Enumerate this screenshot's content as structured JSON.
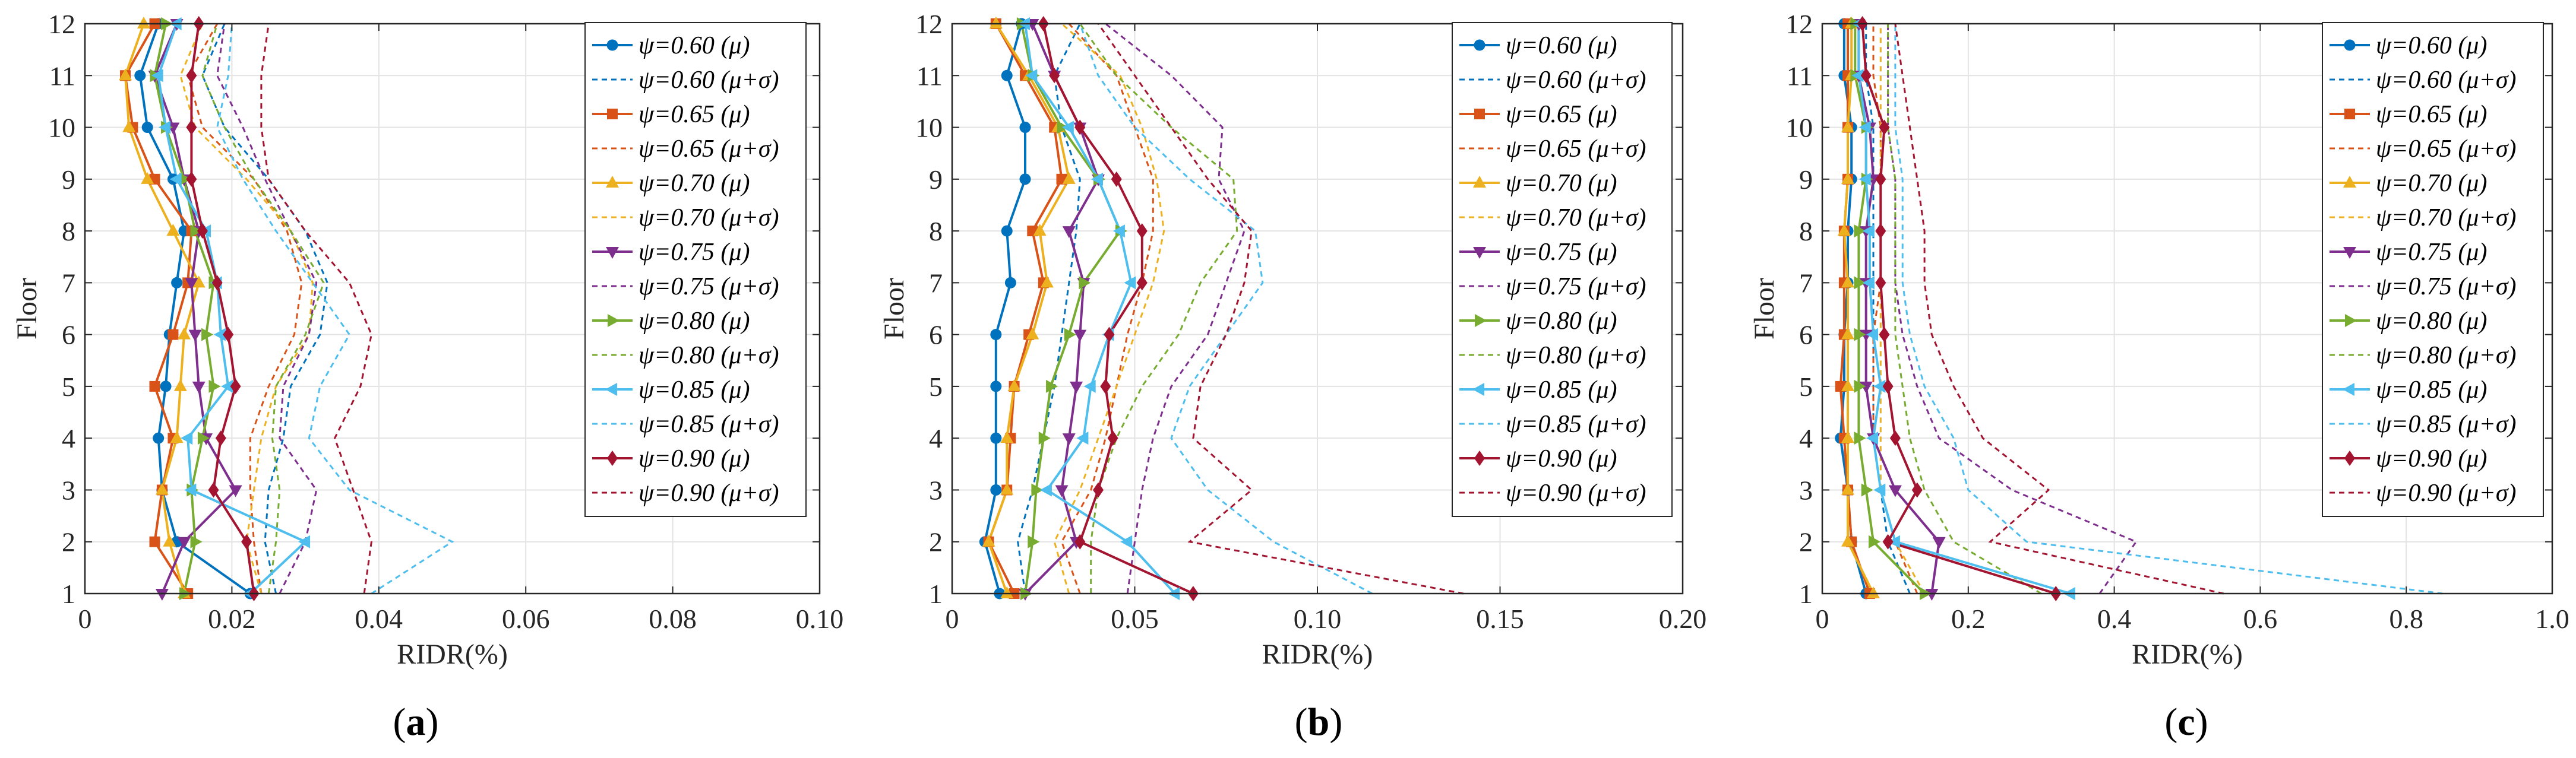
{
  "colors": {
    "0.60": "#0072BD",
    "0.65": "#D95319",
    "0.70": "#EDB120",
    "0.75": "#7E2F8E",
    "0.80": "#77AC30",
    "0.85": "#4DBEEE",
    "0.90": "#A2142F"
  },
  "chart_data": [
    {
      "type": "line",
      "panel_label": "a",
      "xlabel": "RIDR(%)",
      "ylabel": "Floor",
      "xlim": [
        0,
        0.1
      ],
      "xticks": [
        0,
        0.02,
        0.04,
        0.06,
        0.08,
        0.1
      ],
      "xtick_labels": [
        "0",
        "0.02",
        "0.04",
        "0.06",
        "0.08",
        "0.10"
      ],
      "ylim": [
        1,
        12
      ],
      "yticks": [
        1,
        2,
        3,
        4,
        5,
        6,
        7,
        8,
        9,
        10,
        11,
        12
      ],
      "ytick_labels": [
        "1",
        "2",
        "3",
        "4",
        "5",
        "6",
        "7",
        "8",
        "9",
        "10",
        "11",
        "12"
      ],
      "grid": true,
      "legend_position": "top-right",
      "series": [
        {
          "name": "ψ=0.60 (μ)",
          "psi": "0.60",
          "kind": "mean",
          "marker": "circle",
          "x": [
            0.0225,
            0.0125,
            0.0105,
            0.01,
            0.011,
            0.0115,
            0.0125,
            0.0135,
            0.012,
            0.0085,
            0.0075,
            0.01
          ]
        },
        {
          "name": "ψ=0.60 (μ+σ)",
          "psi": "0.60",
          "kind": "std",
          "x": [
            0.026,
            0.0245,
            0.025,
            0.027,
            0.028,
            0.032,
            0.033,
            0.03,
            0.025,
            0.019,
            0.016,
            0.019
          ]
        },
        {
          "name": "ψ=0.65 (μ)",
          "psi": "0.65",
          "kind": "mean",
          "marker": "square",
          "x": [
            0.014,
            0.0095,
            0.0105,
            0.012,
            0.0095,
            0.012,
            0.014,
            0.0145,
            0.0095,
            0.0065,
            0.0055,
            0.0095
          ]
        },
        {
          "name": "ψ=0.65 (μ+σ)",
          "psi": "0.65",
          "kind": "std",
          "x": [
            0.024,
            0.023,
            0.0225,
            0.0225,
            0.025,
            0.0285,
            0.0295,
            0.0275,
            0.023,
            0.016,
            0.014,
            0.018
          ]
        },
        {
          "name": "ψ=0.70 (μ)",
          "psi": "0.70",
          "kind": "mean",
          "marker": "triangle-up",
          "x": [
            0.0135,
            0.0115,
            0.0105,
            0.0125,
            0.013,
            0.0135,
            0.0155,
            0.012,
            0.0085,
            0.006,
            0.0055,
            0.008
          ]
        },
        {
          "name": "ψ=0.70 (μ+σ)",
          "psi": "0.70",
          "kind": "std",
          "x": [
            0.024,
            0.022,
            0.023,
            0.024,
            0.026,
            0.0305,
            0.031,
            0.028,
            0.022,
            0.015,
            0.013,
            0.016
          ]
        },
        {
          "name": "ψ=0.75 (μ)",
          "psi": "0.75",
          "kind": "mean",
          "marker": "triangle-down",
          "x": [
            0.0105,
            0.0135,
            0.0205,
            0.0165,
            0.0155,
            0.015,
            0.0145,
            0.0155,
            0.0135,
            0.012,
            0.0095,
            0.0125
          ]
        },
        {
          "name": "ψ=0.75 (μ+σ)",
          "psi": "0.75",
          "kind": "std",
          "x": [
            0.0265,
            0.03,
            0.0315,
            0.0265,
            0.027,
            0.0305,
            0.0315,
            0.028,
            0.0245,
            0.0215,
            0.018,
            0.019
          ]
        },
        {
          "name": "ψ=0.80 (μ)",
          "psi": "0.80",
          "kind": "mean",
          "marker": "triangle-right",
          "x": [
            0.0135,
            0.015,
            0.0145,
            0.016,
            0.0175,
            0.0165,
            0.0175,
            0.015,
            0.0135,
            0.011,
            0.0095,
            0.011
          ]
        },
        {
          "name": "ψ=0.80 (μ+σ)",
          "psi": "0.80",
          "kind": "std",
          "x": [
            0.025,
            0.026,
            0.0265,
            0.0255,
            0.026,
            0.03,
            0.0325,
            0.028,
            0.023,
            0.019,
            0.016,
            0.018
          ]
        },
        {
          "name": "ψ=0.85 (μ)",
          "psi": "0.85",
          "kind": "mean",
          "marker": "triangle-left",
          "x": [
            0.0225,
            0.03,
            0.0145,
            0.014,
            0.0195,
            0.0185,
            0.018,
            0.0165,
            0.0125,
            0.011,
            0.01,
            0.0125
          ]
        },
        {
          "name": "ψ=0.85 (μ+σ)",
          "psi": "0.85",
          "kind": "std",
          "x": [
            0.039,
            0.05,
            0.036,
            0.0305,
            0.032,
            0.036,
            0.031,
            0.026,
            0.0215,
            0.018,
            0.0195,
            0.02
          ]
        },
        {
          "name": "ψ=0.90 (μ)",
          "psi": "0.90",
          "kind": "mean",
          "marker": "diamond",
          "x": [
            0.023,
            0.022,
            0.0175,
            0.0185,
            0.0205,
            0.0195,
            0.018,
            0.016,
            0.0145,
            0.0145,
            0.0145,
            0.0155
          ]
        },
        {
          "name": "ψ=0.90 (μ+σ)",
          "psi": "0.90",
          "kind": "std",
          "x": [
            0.038,
            0.039,
            0.0365,
            0.034,
            0.0375,
            0.039,
            0.036,
            0.03,
            0.025,
            0.024,
            0.024,
            0.025
          ]
        }
      ]
    },
    {
      "type": "line",
      "panel_label": "b",
      "xlabel": "RIDR(%)",
      "ylabel": "Floor",
      "xlim": [
        0,
        0.2
      ],
      "xticks": [
        0,
        0.05,
        0.1,
        0.15,
        0.2
      ],
      "xtick_labels": [
        "0",
        "0.05",
        "0.10",
        "0.15",
        "0.20"
      ],
      "ylim": [
        1,
        12
      ],
      "yticks": [
        1,
        2,
        3,
        4,
        5,
        6,
        7,
        8,
        9,
        10,
        11,
        12
      ],
      "ytick_labels": [
        "1",
        "2",
        "3",
        "4",
        "5",
        "6",
        "7",
        "8",
        "9",
        "10",
        "11",
        "12"
      ],
      "grid": true,
      "legend_position": "top-right",
      "series": [
        {
          "name": "ψ=0.60 (μ)",
          "psi": "0.60",
          "kind": "mean",
          "marker": "circle",
          "x": [
            0.013,
            0.009,
            0.012,
            0.012,
            0.012,
            0.012,
            0.016,
            0.015,
            0.02,
            0.02,
            0.015,
            0.019
          ]
        },
        {
          "name": "ψ=0.60 (μ+σ)",
          "psi": "0.60",
          "kind": "std",
          "x": [
            0.02,
            0.018,
            0.022,
            0.025,
            0.028,
            0.03,
            0.032,
            0.034,
            0.035,
            0.03,
            0.028,
            0.035
          ]
        },
        {
          "name": "ψ=0.65 (μ)",
          "psi": "0.65",
          "kind": "mean",
          "marker": "square",
          "x": [
            0.017,
            0.01,
            0.015,
            0.016,
            0.017,
            0.021,
            0.025,
            0.022,
            0.03,
            0.028,
            0.02,
            0.012
          ]
        },
        {
          "name": "ψ=0.65 (μ+σ)",
          "psi": "0.65",
          "kind": "std",
          "x": [
            0.035,
            0.03,
            0.038,
            0.042,
            0.045,
            0.048,
            0.052,
            0.055,
            0.055,
            0.05,
            0.045,
            0.032
          ]
        },
        {
          "name": "ψ=0.70 (μ)",
          "psi": "0.70",
          "kind": "mean",
          "marker": "triangle-up",
          "x": [
            0.015,
            0.01,
            0.015,
            0.015,
            0.017,
            0.022,
            0.026,
            0.024,
            0.032,
            0.029,
            0.021,
            0.012
          ]
        },
        {
          "name": "ψ=0.70 (μ+σ)",
          "psi": "0.70",
          "kind": "std",
          "x": [
            0.032,
            0.028,
            0.035,
            0.04,
            0.045,
            0.05,
            0.055,
            0.058,
            0.056,
            0.052,
            0.046,
            0.03
          ]
        },
        {
          "name": "ψ=0.75 (μ)",
          "psi": "0.75",
          "kind": "mean",
          "marker": "triangle-down",
          "x": [
            0.02,
            0.034,
            0.03,
            0.032,
            0.034,
            0.035,
            0.036,
            0.032,
            0.04,
            0.035,
            0.028,
            0.022
          ]
        },
        {
          "name": "ψ=0.75 (μ+σ)",
          "psi": "0.75",
          "kind": "std",
          "x": [
            0.048,
            0.05,
            0.052,
            0.055,
            0.06,
            0.07,
            0.075,
            0.08,
            0.073,
            0.074,
            0.06,
            0.042
          ]
        },
        {
          "name": "ψ=0.80 (μ)",
          "psi": "0.80",
          "kind": "mean",
          "marker": "triangle-right",
          "x": [
            0.02,
            0.022,
            0.023,
            0.025,
            0.027,
            0.032,
            0.036,
            0.046,
            0.04,
            0.03,
            0.022,
            0.019
          ]
        },
        {
          "name": "ψ=0.80 (μ+σ)",
          "psi": "0.80",
          "kind": "std",
          "x": [
            0.038,
            0.038,
            0.04,
            0.045,
            0.052,
            0.062,
            0.068,
            0.078,
            0.077,
            0.06,
            0.045,
            0.035
          ]
        },
        {
          "name": "ψ=0.85 (μ)",
          "psi": "0.85",
          "kind": "mean",
          "marker": "triangle-left",
          "x": [
            0.061,
            0.048,
            0.026,
            0.036,
            0.038,
            0.043,
            0.049,
            0.046,
            0.04,
            0.032,
            0.022,
            0.02
          ]
        },
        {
          "name": "ψ=0.85 (μ+σ)",
          "psi": "0.85",
          "kind": "std",
          "x": [
            0.115,
            0.088,
            0.07,
            0.06,
            0.065,
            0.075,
            0.085,
            0.083,
            0.065,
            0.05,
            0.04,
            0.035
          ]
        },
        {
          "name": "ψ=0.90 (μ)",
          "psi": "0.90",
          "kind": "mean",
          "marker": "diamond",
          "x": [
            0.066,
            0.035,
            0.04,
            0.044,
            0.042,
            0.043,
            0.052,
            0.052,
            0.045,
            0.035,
            0.028,
            0.025
          ]
        },
        {
          "name": "ψ=0.90 (μ+σ)",
          "psi": "0.90",
          "kind": "std",
          "x": [
            0.14,
            0.065,
            0.082,
            0.066,
            0.068,
            0.075,
            0.08,
            0.082,
            0.07,
            0.06,
            0.05,
            0.04
          ]
        }
      ]
    },
    {
      "type": "line",
      "panel_label": "c",
      "xlabel": "RIDR(%)",
      "ylabel": "Floor",
      "xlim": [
        0,
        1.0
      ],
      "xticks": [
        0,
        0.2,
        0.4,
        0.6,
        0.8,
        1.0
      ],
      "xtick_labels": [
        "0",
        "0.2",
        "0.4",
        "0.6",
        "0.8",
        "1.0"
      ],
      "ylim": [
        1,
        12
      ],
      "yticks": [
        1,
        2,
        3,
        4,
        5,
        6,
        7,
        8,
        9,
        10,
        11,
        12
      ],
      "ytick_labels": [
        "1",
        "2",
        "3",
        "4",
        "5",
        "6",
        "7",
        "8",
        "9",
        "10",
        "11",
        "12"
      ],
      "grid": true,
      "legend_position": "top-right",
      "series": [
        {
          "name": "ψ=0.60 (μ)",
          "psi": "0.60",
          "kind": "mean",
          "marker": "circle",
          "x": [
            0.06,
            0.04,
            0.035,
            0.025,
            0.03,
            0.03,
            0.035,
            0.035,
            0.04,
            0.04,
            0.03,
            0.03
          ]
        },
        {
          "name": "ψ=0.60 (μ+σ)",
          "psi": "0.60",
          "kind": "std",
          "x": [
            0.12,
            0.09,
            0.08,
            0.07,
            0.07,
            0.07,
            0.07,
            0.07,
            0.07,
            0.07,
            0.06,
            0.06
          ]
        },
        {
          "name": "ψ=0.65 (μ)",
          "psi": "0.65",
          "kind": "mean",
          "marker": "square",
          "x": [
            0.065,
            0.04,
            0.035,
            0.03,
            0.025,
            0.03,
            0.03,
            0.03,
            0.035,
            0.035,
            0.035,
            0.035
          ]
        },
        {
          "name": "ψ=0.65 (μ+σ)",
          "psi": "0.65",
          "kind": "std",
          "x": [
            0.13,
            0.1,
            0.08,
            0.07,
            0.07,
            0.07,
            0.08,
            0.08,
            0.08,
            0.08,
            0.07,
            0.07
          ]
        },
        {
          "name": "ψ=0.70 (μ)",
          "psi": "0.70",
          "kind": "mean",
          "marker": "triangle-up",
          "x": [
            0.07,
            0.035,
            0.035,
            0.035,
            0.035,
            0.035,
            0.035,
            0.03,
            0.035,
            0.035,
            0.04,
            0.04
          ]
        },
        {
          "name": "ψ=0.70 (μ+σ)",
          "psi": "0.70",
          "kind": "std",
          "x": [
            0.14,
            0.1,
            0.08,
            0.08,
            0.08,
            0.08,
            0.08,
            0.08,
            0.08,
            0.08,
            0.08,
            0.08
          ]
        },
        {
          "name": "ψ=0.75 (μ)",
          "psi": "0.75",
          "kind": "mean",
          "marker": "triangle-down",
          "x": [
            0.15,
            0.16,
            0.1,
            0.07,
            0.06,
            0.06,
            0.06,
            0.06,
            0.07,
            0.065,
            0.05,
            0.05
          ]
        },
        {
          "name": "ψ=0.75 (μ+σ)",
          "psi": "0.75",
          "kind": "std",
          "x": [
            0.38,
            0.43,
            0.26,
            0.16,
            0.13,
            0.11,
            0.1,
            0.1,
            0.1,
            0.09,
            0.09,
            0.09
          ]
        },
        {
          "name": "ψ=0.80 (μ)",
          "psi": "0.80",
          "kind": "mean",
          "marker": "triangle-right",
          "x": [
            0.14,
            0.07,
            0.06,
            0.05,
            0.05,
            0.05,
            0.05,
            0.05,
            0.06,
            0.06,
            0.045,
            0.045
          ]
        },
        {
          "name": "ψ=0.80 (μ+σ)",
          "psi": "0.80",
          "kind": "std",
          "x": [
            0.3,
            0.18,
            0.14,
            0.12,
            0.11,
            0.1,
            0.1,
            0.1,
            0.1,
            0.09,
            0.09,
            0.09
          ]
        },
        {
          "name": "ψ=0.85 (μ)",
          "psi": "0.85",
          "kind": "mean",
          "marker": "triangle-left",
          "x": [
            0.34,
            0.1,
            0.08,
            0.07,
            0.08,
            0.07,
            0.065,
            0.065,
            0.06,
            0.06,
            0.05,
            0.05
          ]
        },
        {
          "name": "ψ=0.85 (μ+σ)",
          "psi": "0.85",
          "kind": "std",
          "x": [
            0.85,
            0.28,
            0.2,
            0.18,
            0.14,
            0.12,
            0.11,
            0.11,
            0.11,
            0.1,
            0.1,
            0.1
          ]
        },
        {
          "name": "ψ=0.90 (μ)",
          "psi": "0.90",
          "kind": "mean",
          "marker": "diamond",
          "x": [
            0.32,
            0.09,
            0.13,
            0.1,
            0.09,
            0.085,
            0.08,
            0.08,
            0.08,
            0.085,
            0.06,
            0.055
          ]
        },
        {
          "name": "ψ=0.90 (μ+σ)",
          "psi": "0.90",
          "kind": "std",
          "x": [
            0.55,
            0.23,
            0.31,
            0.22,
            0.18,
            0.15,
            0.14,
            0.14,
            0.13,
            0.12,
            0.11,
            0.1
          ]
        }
      ]
    }
  ]
}
